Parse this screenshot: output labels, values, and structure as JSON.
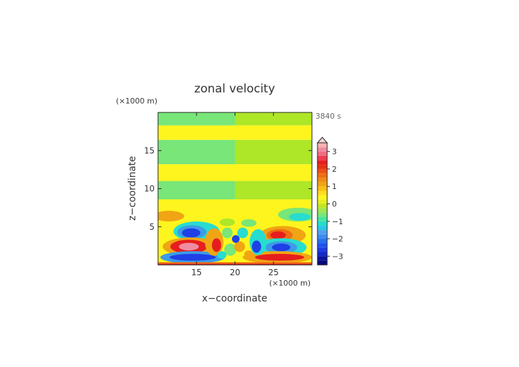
{
  "chart_data": {
    "type": "heatmap",
    "title": "zonal velocity",
    "time_label": "3840 s",
    "xlabel": "x−coordinate",
    "ylabel": "z−coordinate",
    "x_unit": "(×1000 m)",
    "y_unit": "(×1000 m)",
    "xlim": [
      10,
      30
    ],
    "ylim": [
      0,
      20
    ],
    "x_ticks": [
      15,
      20,
      25
    ],
    "y_ticks": [
      5,
      10,
      15
    ],
    "colorbar": {
      "levels": [
        -3.5,
        -3.25,
        -3,
        -2.75,
        -2.5,
        -2.25,
        -2,
        -1.75,
        -1.5,
        -1.25,
        -1,
        -0.75,
        -0.5,
        -0.25,
        0,
        0.25,
        0.5,
        0.75,
        1,
        1.25,
        1.5,
        1.75,
        2,
        2.25,
        2.5,
        2.75,
        3,
        3.25,
        3.5
      ],
      "tick_labels": [
        "3",
        "2",
        "1",
        "0",
        "−1",
        "−2",
        "−3"
      ],
      "tick_values": [
        3,
        2,
        1,
        0,
        -1,
        -2,
        -3
      ],
      "extend": "max"
    },
    "colors": {
      "deep_blue": "#0a0a96",
      "blue": "#1e40e6",
      "light_blue": "#3c9ce6",
      "cyan": "#28dcd0",
      "light_green": "#78e678",
      "yellow_green": "#aee628",
      "yellow": "#fff51e",
      "orange": "#f0a514",
      "dark_orange": "#f06e14",
      "red": "#e61e1e",
      "pink": "#f08ca0",
      "light_pink": "#f5b4b4"
    }
  }
}
